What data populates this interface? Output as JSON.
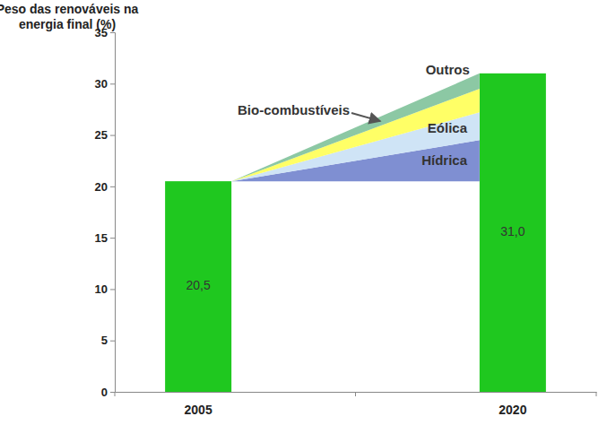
{
  "chart_data": {
    "type": "bar",
    "y_label": [
      "Peso das renováveis na",
      "energia final (%)"
    ],
    "categories": [
      "2005",
      "2020"
    ],
    "values": [
      20.5,
      31.0
    ],
    "value_labels": [
      "20,5",
      "31,0"
    ],
    "data_labels": true,
    "color": "#1fc81f",
    "ylim": [
      0,
      35
    ],
    "yticks": [
      0,
      5,
      10,
      15,
      20,
      25,
      30,
      35
    ],
    "stacked": true,
    "series": [
      {
        "name": "Hídrica",
        "type": "area",
        "color": "#7f8fd2",
        "values": [
          0,
          4.0
        ]
      },
      {
        "name": "Eólica",
        "type": "area",
        "color": "#cfe4f6",
        "values": [
          0,
          2.7
        ]
      },
      {
        "name": "Outros",
        "type": "area",
        "color": "#ffff66",
        "values": [
          0,
          2.3
        ]
      },
      {
        "name": "Bio-combustíveis",
        "type": "area",
        "color": "#8cc8a4",
        "values": [
          0,
          1.5
        ]
      }
    ]
  }
}
